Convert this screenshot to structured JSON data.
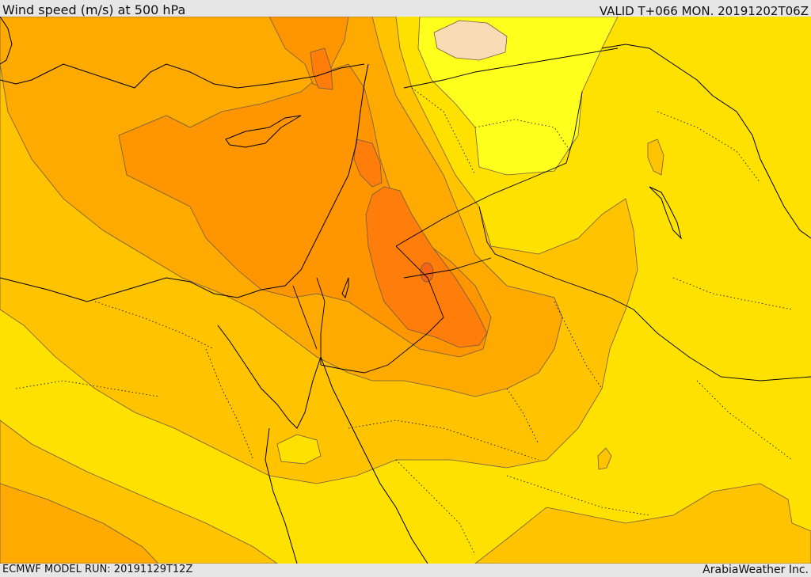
{
  "header": {
    "title": "Wind speed (m/s) at 500 hPa",
    "valid": "VALID T+066 MON. 20191202T06Z"
  },
  "footer": {
    "model_run": "ECMWF MODEL RUN: 20191129T12Z",
    "credit": "ArabiaWeather Inc."
  },
  "colors": {
    "band_light_yellow": "#ffff1e",
    "band_yellow": "#ffe100",
    "band_amber": "#ffc300",
    "band_orange_light": "#ffaa00",
    "band_orange": "#ff9600",
    "band_orange_dark": "#ff7d0a",
    "band_peak": "#f56414",
    "band_calm": "#fadcb4",
    "contour": "#6e5a46",
    "border": "#000000"
  }
}
